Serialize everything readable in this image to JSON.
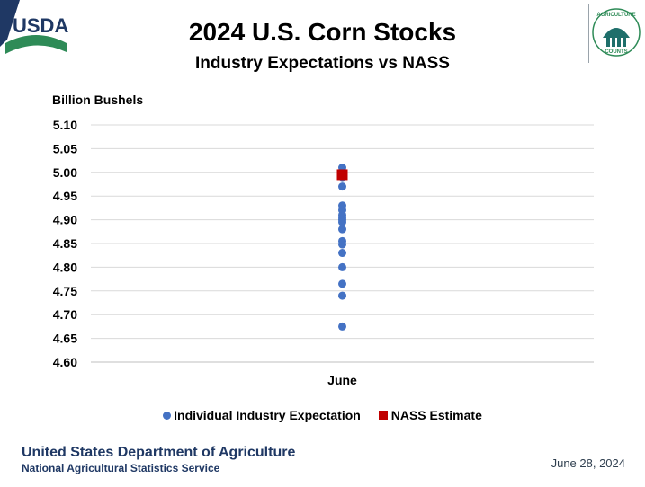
{
  "logos": {
    "usda": "USDA",
    "seal_top": "AGRICULTURE",
    "seal_bottom": "COUNTS"
  },
  "colors": {
    "usda_blue": "#1f3864",
    "usda_green": "#2e8b57",
    "industry": "#4472c4",
    "nass": "#c00000",
    "grid": "#d9d9d9"
  },
  "chart_data": {
    "type": "scatter",
    "title": "2024 U.S. Corn Stocks",
    "subtitle": "Industry Expectations vs NASS",
    "ylabel": "Billion Bushels",
    "xlabel": "",
    "categories": [
      "June"
    ],
    "ylim": [
      4.6,
      5.1
    ],
    "yticks": [
      "4.60",
      "4.65",
      "4.70",
      "4.75",
      "4.80",
      "4.85",
      "4.90",
      "4.95",
      "5.00",
      "5.05",
      "5.10"
    ],
    "grid": true,
    "legend_position": "bottom",
    "series": [
      {
        "name": "Individual Industry Expectation",
        "marker": "circle",
        "color": "#4472c4",
        "x": "June",
        "values": [
          5.01,
          4.99,
          4.97,
          4.93,
          4.92,
          4.91,
          4.905,
          4.9,
          4.895,
          4.88,
          4.855,
          4.848,
          4.83,
          4.8,
          4.765,
          4.74,
          4.675
        ]
      },
      {
        "name": "NASS Estimate",
        "marker": "square",
        "color": "#c00000",
        "x": "June",
        "values": [
          4.995
        ]
      }
    ]
  },
  "footer": {
    "agency": "United States Department of Agriculture",
    "service": "National Agricultural Statistics Service",
    "date": "June 28, 2024"
  }
}
